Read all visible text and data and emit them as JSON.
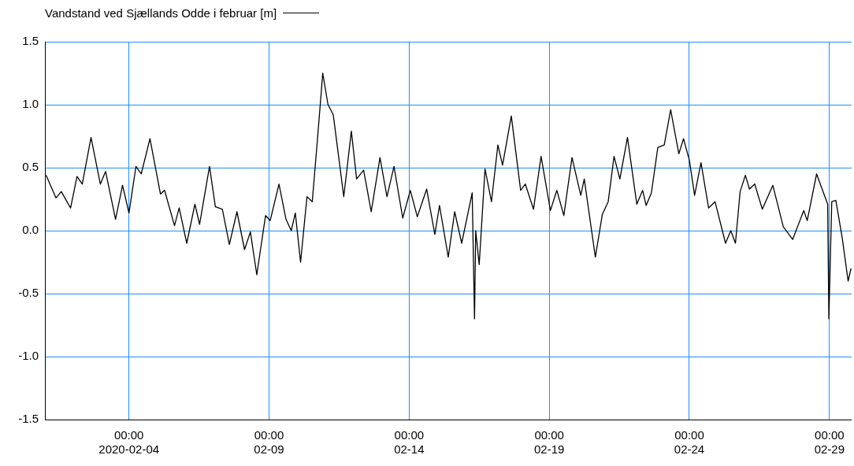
{
  "chart_data": {
    "type": "line",
    "legend": "top left",
    "grid": true,
    "marker": "none",
    "line_style": "solid",
    "xlim": [
      "2020-02-01",
      "2020-02-29T19:00"
    ],
    "xticks": [
      {
        "value": "2020-02-04",
        "label": "00:00\n2020-02-04"
      },
      {
        "value": "2020-02-09",
        "label": "00:00\n02-09"
      },
      {
        "value": "2020-02-14",
        "label": "00:00\n02-14"
      },
      {
        "value": "2020-02-19",
        "label": "00:00\n02-19"
      },
      {
        "value": "2020-02-24",
        "label": "00:00\n02-24"
      },
      {
        "value": "2020-02-29",
        "label": "00:00\n02-29"
      }
    ],
    "ylim": [
      -1.5,
      1.5
    ],
    "yticks": [
      {
        "value": -1.5,
        "label": "-1.5"
      },
      {
        "value": -1,
        "label": "-1.0"
      },
      {
        "value": -0.5,
        "label": "-0.5"
      },
      {
        "value": 0,
        "label": "0.0"
      },
      {
        "value": 0.5,
        "label": "0.5"
      },
      {
        "value": 1,
        "label": "1.0"
      },
      {
        "value": 1.5,
        "label": "1.5"
      }
    ],
    "x": [
      "2020-02-01T01:00",
      "2020-02-01T09:30",
      "2020-02-01T14:00",
      "2020-02-01T22:00",
      "2020-02-02T03:30",
      "2020-02-02T08:00",
      "2020-02-02T15:30",
      "2020-02-02T23:30",
      "2020-02-03T04:00",
      "2020-02-03T12:30",
      "2020-02-03T18:30",
      "2020-02-04T00:00",
      "2020-02-04T06:00",
      "2020-02-04T10:30",
      "2020-02-04T18:00",
      "2020-02-05T03:00",
      "2020-02-05T06:30",
      "2020-02-05T15:00",
      "2020-02-05T19:00",
      "2020-02-06T01:30",
      "2020-02-06T08:30",
      "2020-02-06T12:30",
      "2020-02-06T21:00",
      "2020-02-07T02:00",
      "2020-02-07T08:00",
      "2020-02-07T14:00",
      "2020-02-07T20:30",
      "2020-02-08T03:00",
      "2020-02-08T08:00",
      "2020-02-08T13:30",
      "2020-02-08T21:00",
      "2020-02-09T01:00",
      "2020-02-09T08:30",
      "2020-02-09T14:30",
      "2020-02-09T19:00",
      "2020-02-09T22:30",
      "2020-02-10T03:00",
      "2020-02-10T08:30",
      "2020-02-10T13:00",
      "2020-02-10T17:30",
      "2020-02-10T22:00",
      "2020-02-11T02:30",
      "2020-02-11T07:00",
      "2020-02-11T16:00",
      "2020-02-11T22:30",
      "2020-02-12T03:00",
      "2020-02-12T09:00",
      "2020-02-12T15:30",
      "2020-02-12T23:00",
      "2020-02-13T05:00",
      "2020-02-13T11:00",
      "2020-02-13T18:30",
      "2020-02-14T01:00",
      "2020-02-14T07:00",
      "2020-02-14T15:00",
      "2020-02-14T22:00",
      "2020-02-15T02:00",
      "2020-02-15T09:30",
      "2020-02-15T15:00",
      "2020-02-15T21:00",
      "2020-02-16T06:00",
      "2020-02-16T08:00",
      "2020-02-16T09:00",
      "2020-02-16T12:00",
      "2020-02-16T17:00",
      "2020-02-16T22:30",
      "2020-02-17T04:00",
      "2020-02-17T08:00",
      "2020-02-17T15:30",
      "2020-02-17T23:30",
      "2020-02-18T03:30",
      "2020-02-18T10:30",
      "2020-02-18T17:00",
      "2020-02-19T01:00",
      "2020-02-19T06:30",
      "2020-02-19T12:30",
      "2020-02-19T19:30",
      "2020-02-20T03:00",
      "2020-02-20T06:00",
      "2020-02-20T15:30",
      "2020-02-20T21:30",
      "2020-02-21T02:30",
      "2020-02-21T07:30",
      "2020-02-21T12:30",
      "2020-02-21T19:00",
      "2020-02-22T03:00",
      "2020-02-22T08:00",
      "2020-02-22T11:00",
      "2020-02-22T15:30",
      "2020-02-22T21:00",
      "2020-02-23T02:30",
      "2020-02-23T08:00",
      "2020-02-23T15:00",
      "2020-02-23T19:00",
      "2020-02-24T00:00",
      "2020-02-24T04:30",
      "2020-02-24T10:00",
      "2020-02-24T16:30",
      "2020-02-24T22:00",
      "2020-02-25T07:00",
      "2020-02-25T11:30",
      "2020-02-25T15:30",
      "2020-02-25T19:30",
      "2020-02-26T00:00",
      "2020-02-26T03:30",
      "2020-02-26T08:00",
      "2020-02-26T14:30",
      "2020-02-26T23:30",
      "2020-02-27T08:30",
      "2020-02-27T16:30",
      "2020-02-28T02:00",
      "2020-02-28T05:00",
      "2020-02-28T13:00",
      "2020-02-28T22:30",
      "2020-02-28T23:30",
      "2020-02-29T02:00",
      "2020-02-29T05:30",
      "2020-02-29T11:00",
      "2020-02-29T16:00",
      "2020-02-29T18:30"
    ],
    "series": [
      {
        "name": "Vandstand ved Sjællands Odde i februar [m]",
        "color": "#000000",
        "values": [
          0.44,
          0.26,
          0.31,
          0.18,
          0.43,
          0.37,
          0.74,
          0.37,
          0.47,
          0.09,
          0.36,
          0.14,
          0.51,
          0.45,
          0.73,
          0.29,
          0.32,
          0.04,
          0.18,
          -0.1,
          0.21,
          0.05,
          0.51,
          0.19,
          0.17,
          -0.11,
          0.15,
          -0.15,
          -0.01,
          -0.35,
          0.12,
          0.08,
          0.37,
          0.09,
          0.0,
          0.14,
          -0.25,
          0.27,
          0.23,
          0.73,
          1.25,
          1.0,
          0.92,
          0.27,
          0.79,
          0.41,
          0.48,
          0.15,
          0.58,
          0.27,
          0.51,
          0.1,
          0.32,
          0.11,
          0.33,
          -0.03,
          0.2,
          -0.21,
          0.15,
          -0.1,
          0.3,
          -0.7,
          0.0,
          -0.27,
          0.49,
          0.23,
          0.68,
          0.52,
          0.91,
          0.32,
          0.37,
          0.17,
          0.59,
          0.16,
          0.32,
          0.12,
          0.58,
          0.28,
          0.41,
          -0.21,
          0.13,
          0.23,
          0.59,
          0.41,
          0.74,
          0.21,
          0.32,
          0.2,
          0.3,
          0.66,
          0.68,
          0.96,
          0.61,
          0.73,
          0.56,
          0.28,
          0.54,
          0.18,
          0.23,
          -0.1,
          0.0,
          -0.1,
          0.31,
          0.44,
          0.33,
          0.37,
          0.17,
          0.36,
          0.03,
          -0.07,
          0.16,
          0.08,
          0.45,
          0.21,
          -0.7,
          0.23,
          0.24,
          -0.06,
          -0.4,
          -0.3
        ]
      }
    ]
  }
}
